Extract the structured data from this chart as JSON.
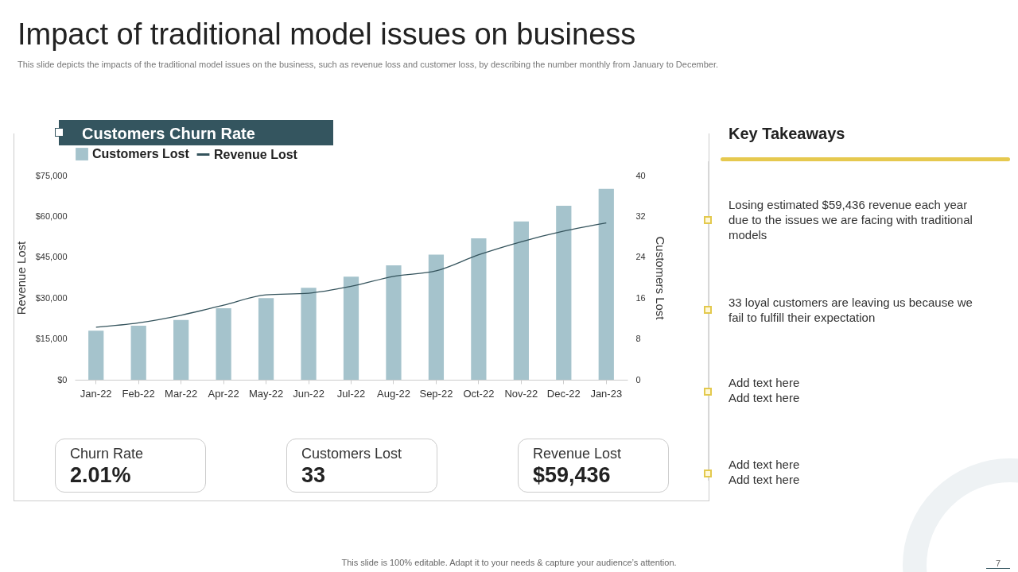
{
  "chart_data": {
    "type": "bar",
    "title": "Impact of traditional model issues on business",
    "subtitle": "This slide depicts the impacts of the traditional model issues on the business, such as revenue loss and customer loss, by describing the number monthly from January to December.",
    "categories": [
      "Jan-22",
      "Feb-22",
      "Mar-22",
      "Apr-22",
      "May-22",
      "Jun-22",
      "Jul-22",
      "Aug-22",
      "Sep-22",
      "Oct-22",
      "Nov-22",
      "Dec-22",
      "Jan-23"
    ],
    "series": [
      {
        "name": "Customers Lost",
        "axis": "y2",
        "color": "#a5c3cc",
        "values": [
          9.6,
          10.6,
          11.7,
          14,
          16,
          18,
          20.2,
          22.4,
          24.5,
          27.7,
          31,
          34.1,
          37.4
        ]
      },
      {
        "name": "Revenue Lost",
        "type": "line",
        "color": "#34535c",
        "values": [
          19300,
          20900,
          23700,
          27400,
          31200,
          31800,
          34300,
          38000,
          40000,
          45900,
          50700,
          54600,
          57600
        ]
      }
    ],
    "ylabel": "Revenue Lost",
    "y2label": "Customers Lost",
    "ylim": [
      0,
      75000
    ],
    "yticks": [
      {
        "value": 0,
        "label": "$0"
      },
      {
        "value": 15000,
        "label": "$15,000"
      },
      {
        "value": 30000,
        "label": "$30,000"
      },
      {
        "value": 45000,
        "label": "$45,000"
      },
      {
        "value": 60000,
        "label": "$60,000"
      },
      {
        "value": 75000,
        "label": "$75,000"
      }
    ],
    "y2lim": [
      0,
      40
    ],
    "y2ticks": [
      0,
      8,
      16,
      24,
      32,
      40
    ],
    "legend": "top",
    "annotations": [
      "Customers Churn Rate",
      "Churn Rate",
      "2.01%",
      "Customers Lost",
      "33",
      "Revenue Lost",
      "$59,436",
      "Key Takeaways",
      "Losing estimated $59,436 revenue each year due to the issues we are facing with traditional models",
      "33 loyal customers are leaving us because we fail to fulfill their expectation",
      "Add text here",
      "Add text here",
      "Add text here",
      "Add text here",
      "This slide is 100% editable. Adapt it to your needs & capture your audience’s attention.",
      "7"
    ]
  }
}
